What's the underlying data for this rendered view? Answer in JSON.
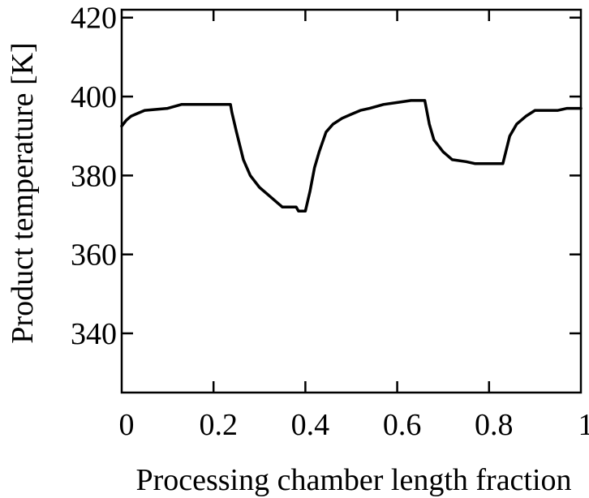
{
  "chart_data": {
    "type": "line",
    "title": "",
    "xlabel": "Processing chamber length fraction",
    "ylabel": "Product temperature [K]",
    "xlim": [
      0,
      1
    ],
    "ylim": [
      325,
      422
    ],
    "xticks": [
      0,
      0.2,
      0.4,
      0.6,
      0.8,
      1
    ],
    "xtick_labels": [
      "0",
      "0.2",
      "0.4",
      "0.6",
      "0.8",
      "1"
    ],
    "yticks": [
      340,
      360,
      380,
      400,
      420
    ],
    "ytick_labels": [
      "340",
      "360",
      "380",
      "400",
      "420"
    ],
    "grid": false,
    "legend": "none",
    "line_color": "#000000",
    "series": [
      {
        "x": [
          0,
          0.01,
          0.02,
          0.03,
          0.05,
          0.1,
          0.13,
          0.16,
          0.2,
          0.225,
          0.237,
          0.24,
          0.25,
          0.265,
          0.28,
          0.3,
          0.32,
          0.34,
          0.35,
          0.38,
          0.385,
          0.4,
          0.41,
          0.42,
          0.43,
          0.445,
          0.46,
          0.48,
          0.5,
          0.52,
          0.54,
          0.57,
          0.6,
          0.63,
          0.66,
          0.67,
          0.68,
          0.7,
          0.72,
          0.75,
          0.77,
          0.8,
          0.83,
          0.845,
          0.86,
          0.88,
          0.9,
          0.95,
          0.97,
          1
        ],
        "y": [
          392.5,
          394,
          395,
          395.5,
          396.5,
          397,
          398,
          398,
          398,
          398,
          398,
          396,
          391,
          384,
          380,
          377,
          375,
          373,
          372,
          372,
          371,
          371,
          376,
          382,
          386,
          391,
          393,
          394.5,
          395.5,
          396.5,
          397,
          398,
          398.5,
          399,
          399,
          393,
          389,
          386,
          384,
          383.5,
          383,
          383,
          383,
          390,
          393,
          395,
          396.5,
          396.5,
          397,
          397
        ]
      }
    ]
  }
}
